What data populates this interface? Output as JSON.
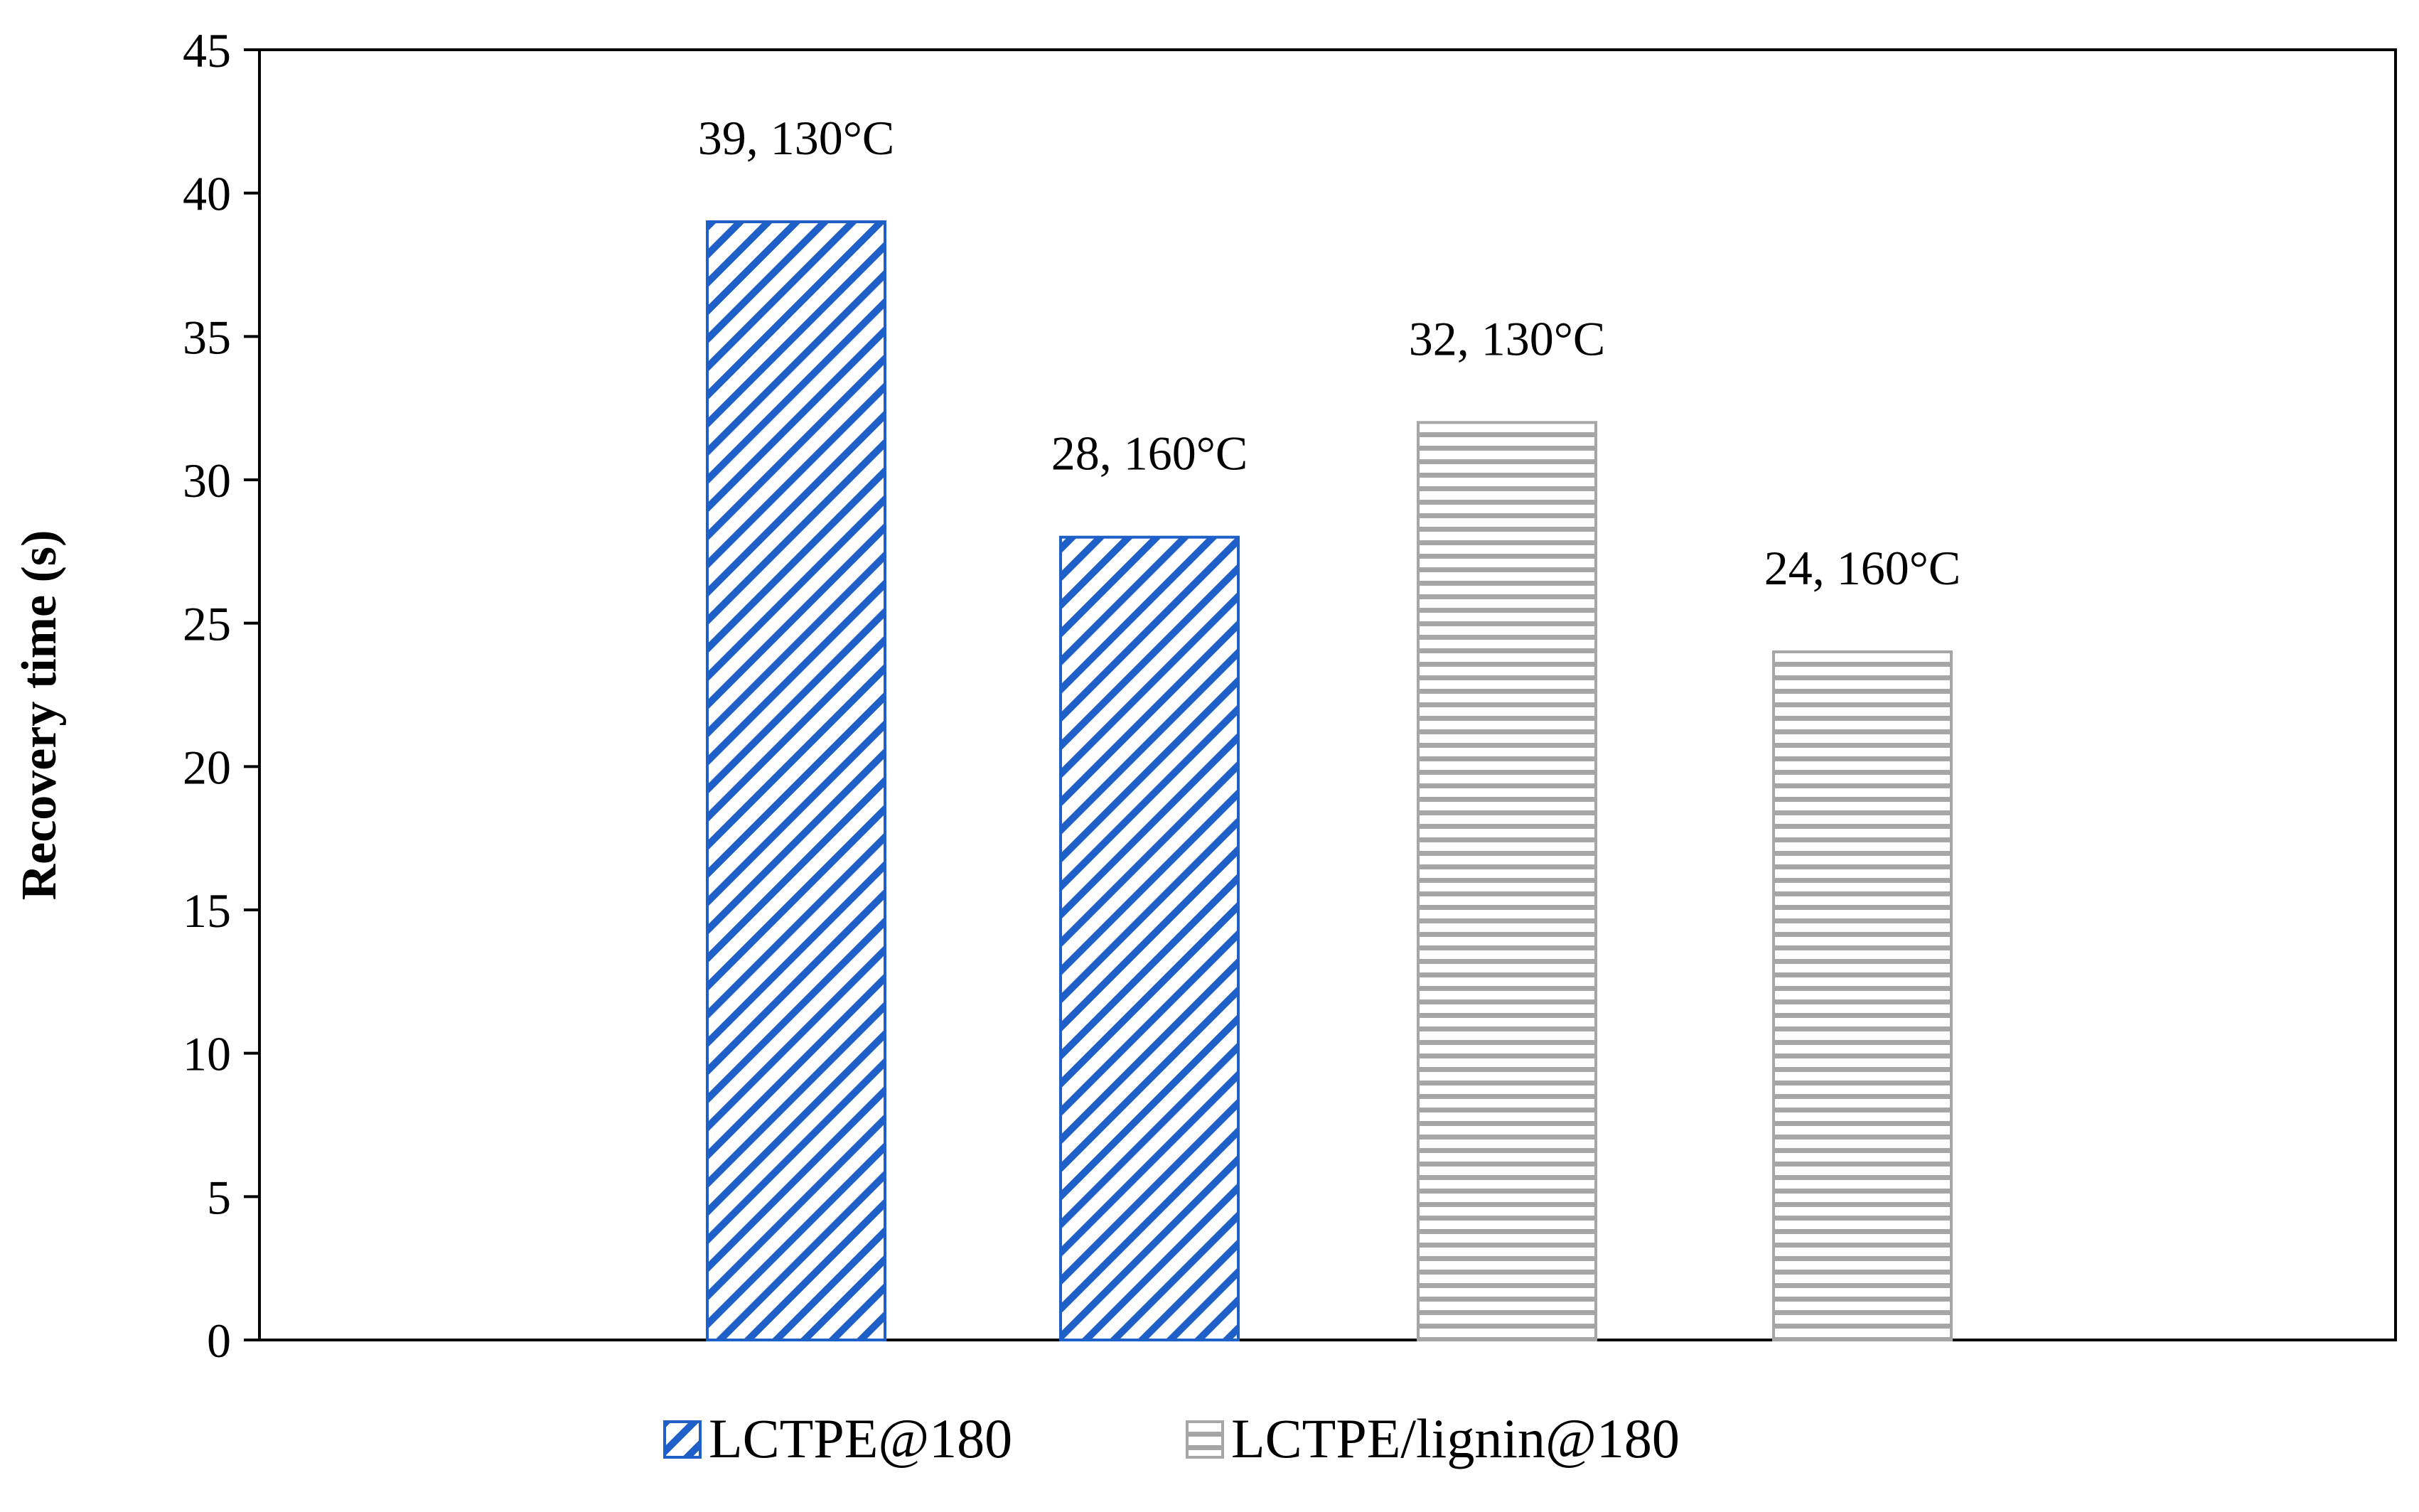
{
  "chart_data": {
    "type": "bar",
    "title": "",
    "xlabel": "",
    "ylabel": "Recovery time (s)",
    "ylim": [
      0,
      45
    ],
    "yticks": [
      0,
      5,
      10,
      15,
      20,
      25,
      30,
      35,
      40,
      45
    ],
    "grid": false,
    "legend_position": "bottom",
    "series": [
      {
        "name": "LCTPE@180",
        "color": "#1f5fc8",
        "pattern": "diagonal",
        "bars": [
          {
            "value": 39,
            "label": "39, 130°C"
          },
          {
            "value": 28,
            "label": "28, 160°C"
          }
        ]
      },
      {
        "name": "LCTPE/lignin@180",
        "color": "#a6a6a6",
        "pattern": "horizontal",
        "bars": [
          {
            "value": 32,
            "label": "32, 130°C"
          },
          {
            "value": 24,
            "label": "24, 160°C"
          }
        ]
      }
    ]
  }
}
